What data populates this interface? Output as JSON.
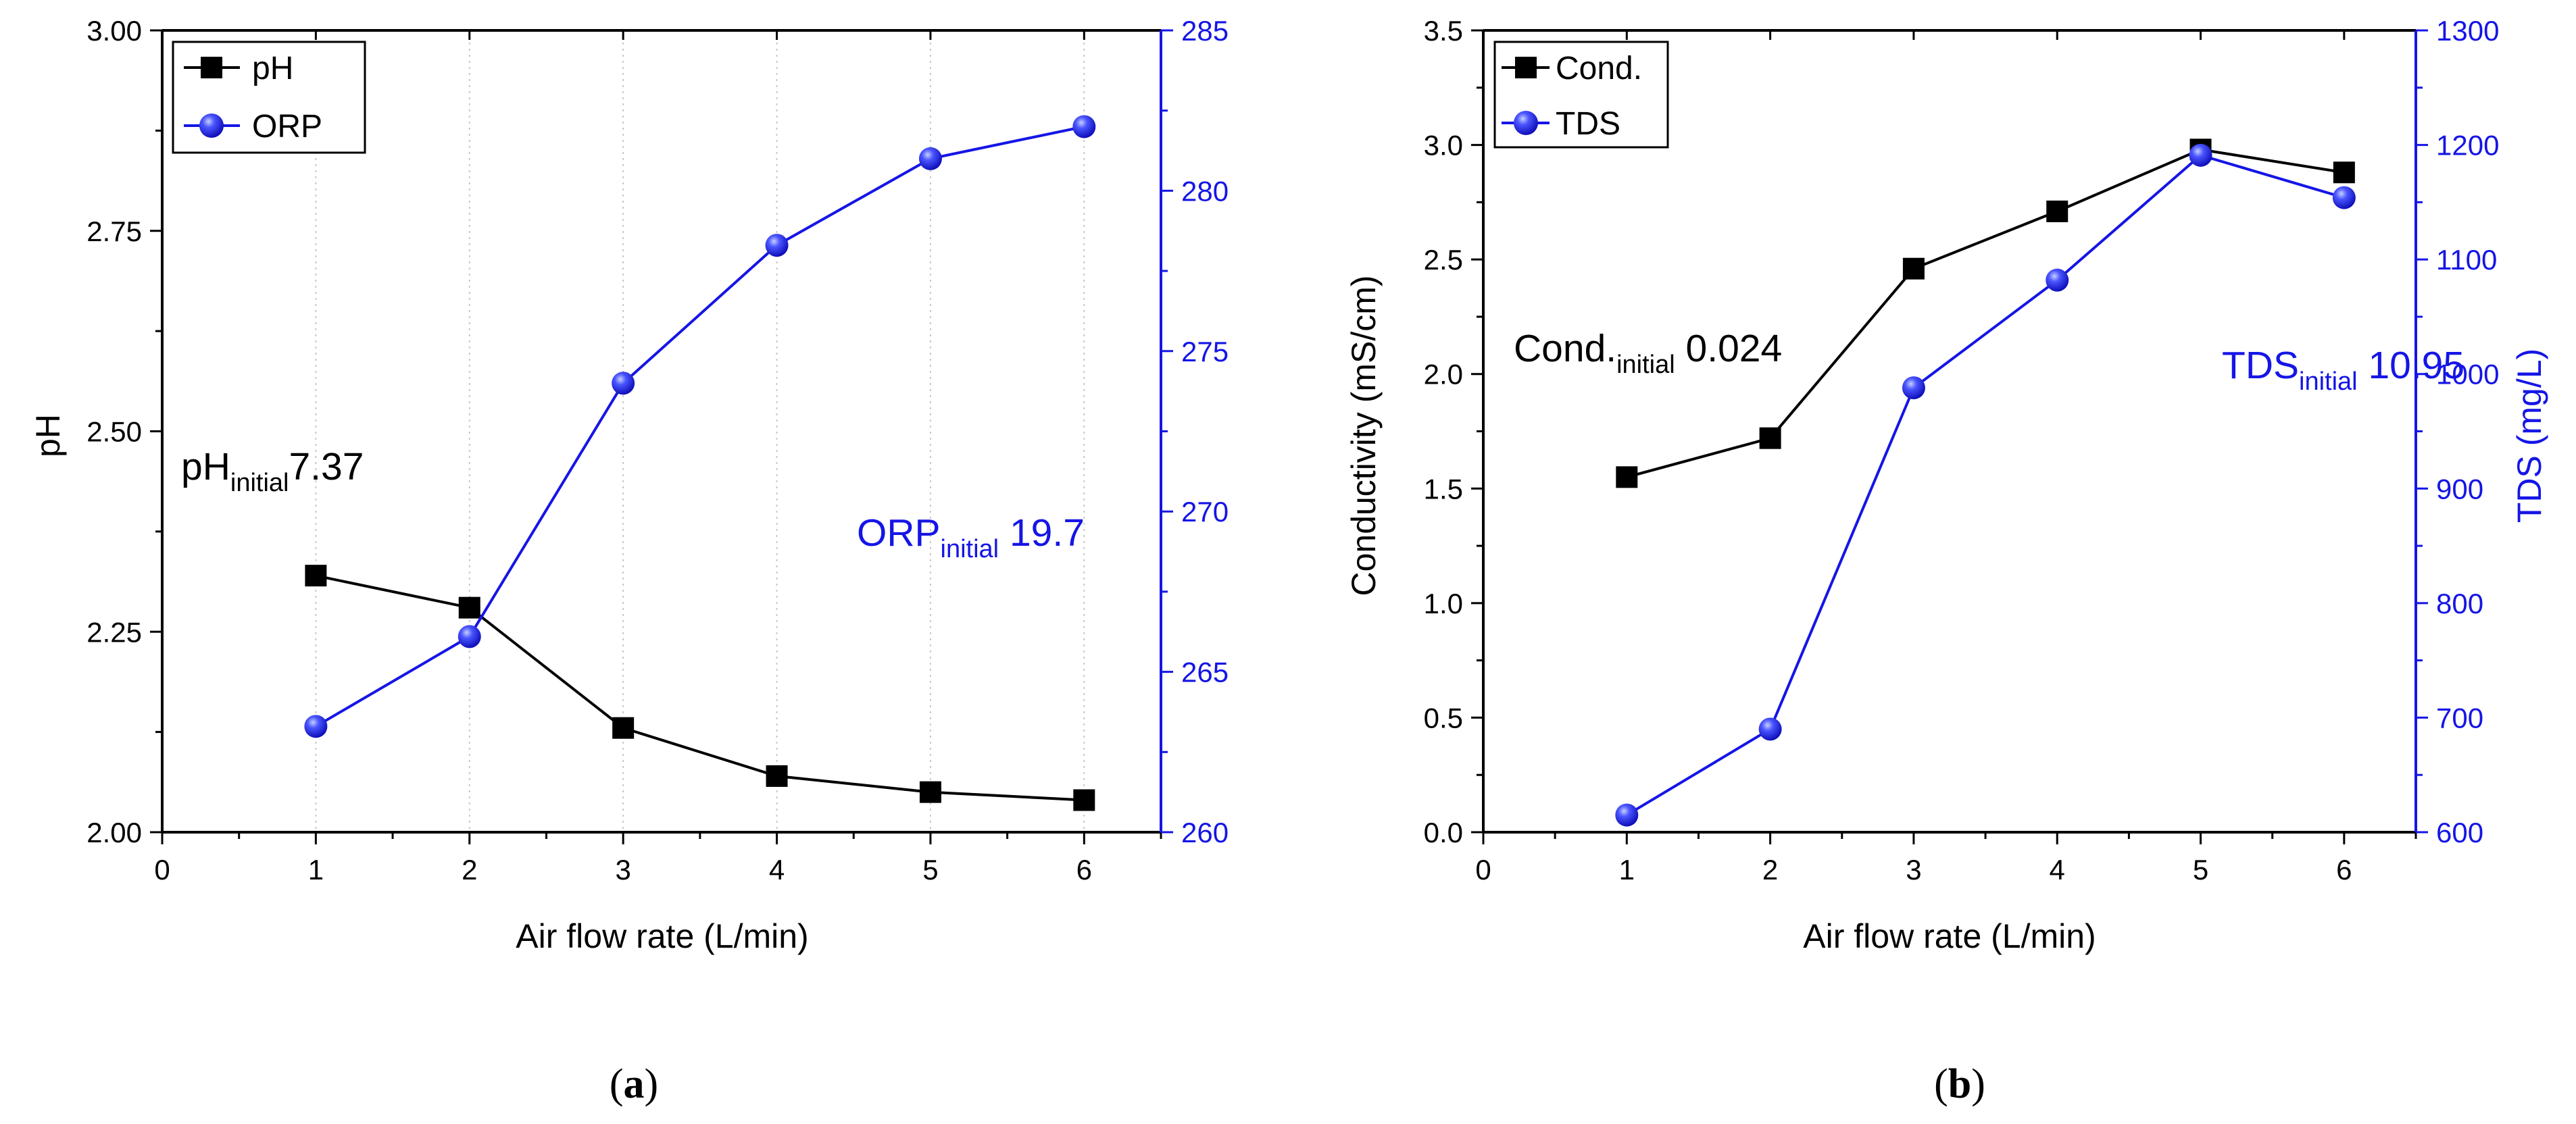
{
  "colors": {
    "primary": "#000000",
    "secondary": "#1515e6",
    "grid": "#c8c8c8"
  },
  "chart_data": [
    {
      "type": "line",
      "panel_label": "a",
      "title": "",
      "xlabel": "Air flow rate (L/min)",
      "ylabel": "pH",
      "y2label": "",
      "xlim": [
        0,
        6.5
      ],
      "ylim": [
        2.0,
        3.0
      ],
      "y2lim": [
        260,
        285
      ],
      "xticks": [
        "0",
        "1",
        "2",
        "3",
        "4",
        "5",
        "6"
      ],
      "yticks": [
        "2.00",
        "2.25",
        "2.50",
        "2.75",
        "3.00"
      ],
      "y2ticks": [
        "260",
        "265",
        "270",
        "275",
        "280",
        "285"
      ],
      "grid": "vertical-minor-dotted",
      "legend": "top-left",
      "series": [
        {
          "name": "pH",
          "axis": "left",
          "marker": "square",
          "x": [
            1,
            2,
            3,
            4,
            5,
            6
          ],
          "values": [
            2.32,
            2.28,
            2.13,
            2.07,
            2.05,
            2.04
          ]
        },
        {
          "name": "ORP",
          "axis": "right",
          "marker": "circle",
          "x": [
            1,
            2,
            3,
            4,
            5,
            6
          ],
          "values": [
            263.3,
            266.1,
            274.0,
            278.3,
            281.0,
            282.0
          ]
        }
      ],
      "annotations": [
        {
          "base": "pH",
          "sub": "initial",
          "value": "7.37",
          "series": "pH"
        },
        {
          "base": "ORP",
          "sub": "initial",
          "value": " 19.7",
          "series": "ORP"
        }
      ]
    },
    {
      "type": "line",
      "panel_label": "b",
      "title": "",
      "xlabel": "Air flow rate (L/min)",
      "ylabel": "Conductivity (mS/cm)",
      "y2label": "TDS (mg/L)",
      "xlim": [
        0,
        6.5
      ],
      "ylim": [
        0,
        3.5
      ],
      "y2lim": [
        600,
        1300
      ],
      "xticks": [
        "0",
        "1",
        "2",
        "3",
        "4",
        "5",
        "6"
      ],
      "yticks": [
        "0.0",
        "0.5",
        "1.0",
        "1.5",
        "2.0",
        "2.5",
        "3.0",
        "3.5"
      ],
      "y2ticks": [
        "600",
        "700",
        "800",
        "900",
        "1000",
        "1100",
        "1200",
        "1300"
      ],
      "grid": "none",
      "legend": "top-left",
      "series": [
        {
          "name": "Cond.",
          "axis": "left",
          "marker": "square",
          "x": [
            1,
            2,
            3,
            4,
            5,
            6
          ],
          "values": [
            1.55,
            1.72,
            2.46,
            2.71,
            2.98,
            2.88
          ]
        },
        {
          "name": "TDS",
          "axis": "right",
          "marker": "circle",
          "x": [
            1,
            2,
            3,
            4,
            5,
            6
          ],
          "values": [
            615,
            690,
            988,
            1082,
            1191,
            1154
          ]
        }
      ],
      "annotations": [
        {
          "base": "Cond.",
          "sub": "initial",
          "value": " 0.024",
          "series": "Cond."
        },
        {
          "base": "TDS",
          "sub": "initial",
          "value": " 10.95",
          "series": "TDS"
        }
      ]
    }
  ]
}
